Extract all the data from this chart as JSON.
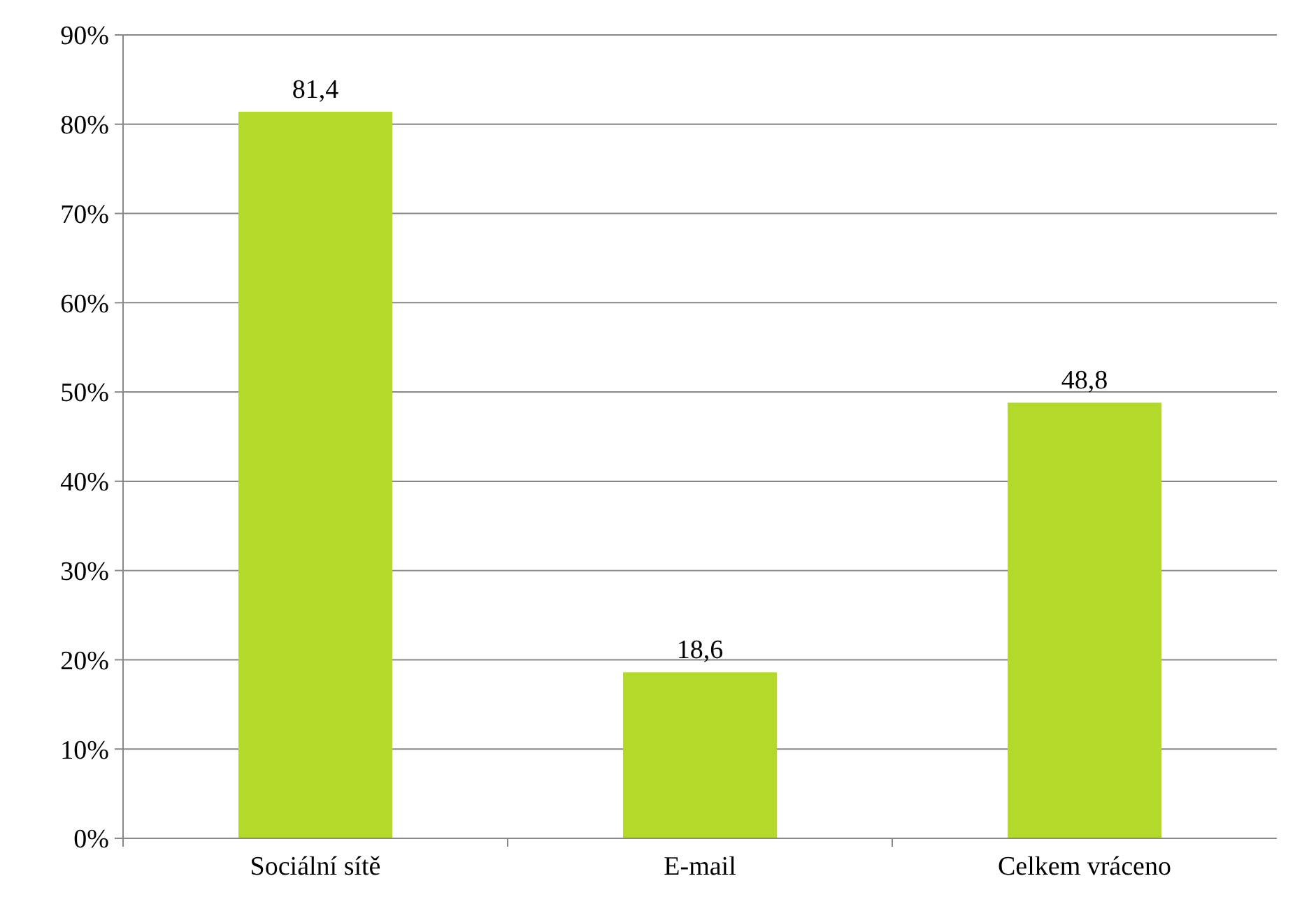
{
  "chart_data": {
    "type": "bar",
    "categories": [
      "Sociální sítě",
      "E-mail",
      "Celkem vráceno"
    ],
    "values": [
      81.4,
      18.6,
      48.8
    ],
    "color": "#b3d92b",
    "value_labels": [
      "81,4",
      "18,6",
      "48,8"
    ],
    "ylim": [
      0,
      90
    ],
    "yticks": [
      {
        "value": 0,
        "label": "0%"
      },
      {
        "value": 10,
        "label": "10%"
      },
      {
        "value": 20,
        "label": "20%"
      },
      {
        "value": 30,
        "label": "30%"
      },
      {
        "value": 40,
        "label": "40%"
      },
      {
        "value": 50,
        "label": "50%"
      },
      {
        "value": 60,
        "label": "60%"
      },
      {
        "value": 70,
        "label": "70%"
      },
      {
        "value": 80,
        "label": "80%"
      },
      {
        "value": 90,
        "label": "90%"
      }
    ],
    "grid": "y"
  }
}
